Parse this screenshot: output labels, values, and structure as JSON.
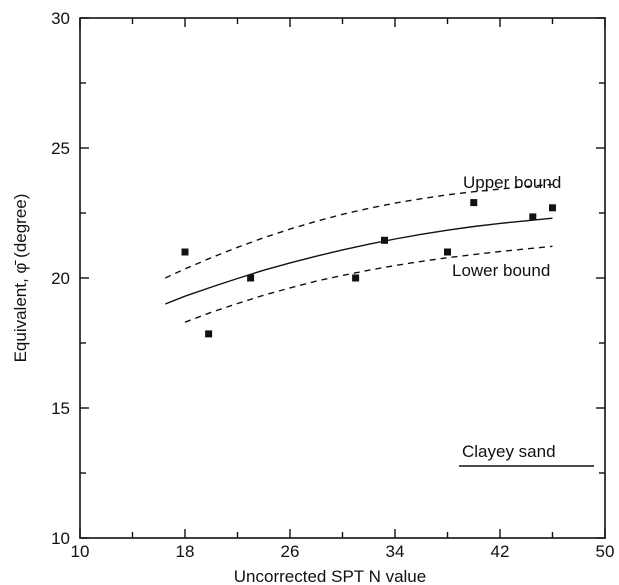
{
  "chart_data": {
    "type": "scatter",
    "xlabel": "Uncorrected SPT N value",
    "ylabel": "Equivalent, φ̄ (degree)",
    "xlim": [
      10,
      50
    ],
    "ylim": [
      10,
      30
    ],
    "xticks": [
      10,
      18,
      26,
      34,
      42,
      50
    ],
    "yticks": [
      10,
      15,
      20,
      25,
      30
    ],
    "grid": false,
    "series": [
      {
        "kind": "points",
        "x": [
          18,
          19.8,
          23,
          31,
          33.2,
          38,
          40,
          44.5,
          46
        ],
        "y": [
          21.0,
          17.85,
          20.0,
          20.0,
          21.45,
          21.0,
          22.9,
          22.35,
          22.7
        ]
      },
      {
        "kind": "line",
        "style": "solid",
        "x": [
          16.5,
          18,
          20,
          22,
          24,
          26,
          28,
          30,
          32,
          34,
          36,
          38,
          40,
          42,
          44,
          46
        ],
        "y": [
          19.0,
          19.3,
          19.65,
          19.98,
          20.3,
          20.58,
          20.84,
          21.08,
          21.3,
          21.5,
          21.68,
          21.84,
          21.98,
          22.1,
          22.2,
          22.3
        ]
      },
      {
        "kind": "line",
        "style": "dashed",
        "name": "Upper bound",
        "x": [
          16.5,
          18,
          20,
          22,
          24,
          26,
          28,
          30,
          32,
          34,
          36,
          38,
          40,
          42,
          44,
          46
        ],
        "y": [
          20.0,
          20.35,
          20.78,
          21.18,
          21.55,
          21.88,
          22.18,
          22.45,
          22.68,
          22.88,
          23.05,
          23.2,
          23.32,
          23.42,
          23.52,
          23.6
        ]
      },
      {
        "kind": "line",
        "style": "dashed",
        "name": "Lower bound",
        "x": [
          18,
          20,
          22,
          24,
          26,
          28,
          30,
          32,
          34,
          36,
          38,
          40,
          42,
          44,
          46
        ],
        "y": [
          18.3,
          18.68,
          19.02,
          19.34,
          19.62,
          19.88,
          20.1,
          20.3,
          20.48,
          20.64,
          20.78,
          20.9,
          21.02,
          21.12,
          21.22
        ]
      }
    ],
    "annotations": {
      "upper_label": "Upper bound",
      "lower_label": "Lower bound",
      "soil_label": "Clayey sand"
    }
  }
}
